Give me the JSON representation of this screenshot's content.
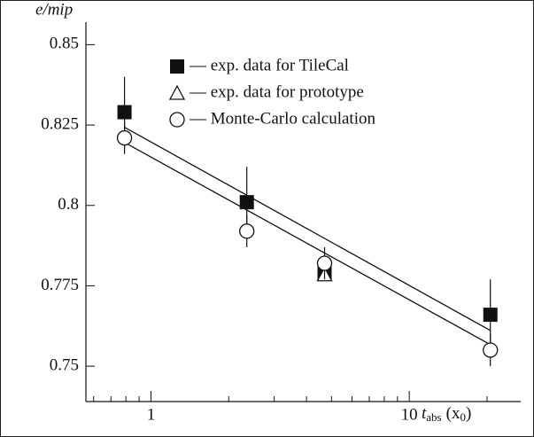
{
  "chart_data": {
    "type": "scatter",
    "log_x": true,
    "y_label": "e/mip",
    "x_label": {
      "main": "t",
      "sub": "abs",
      "open": "(x",
      "sub2": "0",
      "close": ")"
    },
    "xlim": [
      0.56,
      27
    ],
    "ylim": [
      0.739,
      0.857
    ],
    "xticks": [
      1,
      10
    ],
    "xminorticks": [
      0.6,
      0.7,
      0.8,
      0.9,
      2,
      3,
      4,
      5,
      6,
      7,
      8,
      9,
      20
    ],
    "yticks": [
      0.75,
      0.775,
      0.8,
      0.825,
      0.85
    ],
    "legend": "top-right",
    "series": [
      {
        "name": "— exp. data for TileCal",
        "marker": "square",
        "color": "#111111",
        "x": [
          0.79,
          2.35,
          4.7,
          20.6
        ],
        "values": [
          0.829,
          0.801,
          0.779,
          0.766
        ],
        "errors": [
          0.011,
          0.011,
          0.002,
          0.011
        ]
      },
      {
        "name": "— exp. data for prototype",
        "marker": "triangle",
        "color": "#111111",
        "x": [
          4.7
        ],
        "values": [
          0.7785
        ]
      },
      {
        "name": "— Monte-Carlo calculation",
        "marker": "circle",
        "color": "#111111",
        "x": [
          0.79,
          2.35,
          4.7,
          20.6
        ],
        "values": [
          0.821,
          0.792,
          0.782,
          0.755
        ],
        "errors": [
          0.005,
          0.005,
          0.005,
          0.005
        ]
      }
    ],
    "lines": [
      {
        "x": [
          0.79,
          20.6
        ],
        "values": [
          0.8243,
          0.7611
        ]
      },
      {
        "x": [
          0.79,
          20.6
        ],
        "values": [
          0.8196,
          0.7567
        ]
      }
    ]
  }
}
